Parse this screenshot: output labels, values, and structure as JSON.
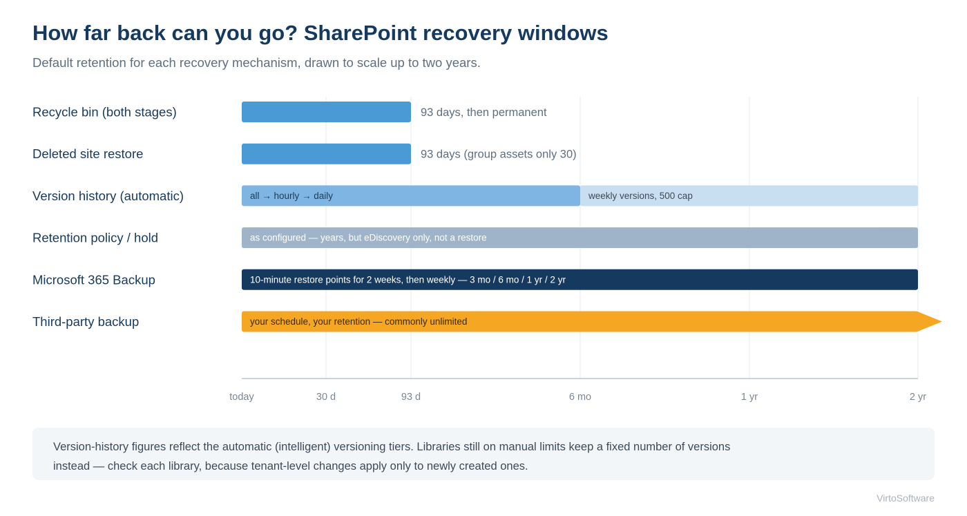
{
  "header": {
    "title": "How far back can you go? SharePoint recovery windows",
    "subtitle": "Default retention for each recovery mechanism, drawn to scale up to two years."
  },
  "chart_data": {
    "type": "bar",
    "orientation": "horizontal",
    "x_unit": "days",
    "xlim": [
      0,
      730
    ],
    "grid": true,
    "ticks": [
      {
        "label": "today",
        "value": 0
      },
      {
        "label": "30 d",
        "value": 30
      },
      {
        "label": "93 d",
        "value": 93
      },
      {
        "label": "6 mo",
        "value": 183
      },
      {
        "label": "1 yr",
        "value": 365
      },
      {
        "label": "2 yr",
        "value": 730
      }
    ],
    "rows": [
      {
        "label": "Recycle bin (both stages)",
        "segments": [
          {
            "start": 0,
            "end": 93,
            "color": "#4a9ad6",
            "text": ""
          }
        ],
        "annotation": "93 days, then permanent"
      },
      {
        "label": "Deleted site restore",
        "segments": [
          {
            "start": 0,
            "end": 93,
            "color": "#4a9ad6",
            "text": ""
          }
        ],
        "annotation": "93 days (group assets only 30)"
      },
      {
        "label": "Version history (automatic)",
        "segments": [
          {
            "start": 0,
            "end": 183,
            "color": "#7fb5e3",
            "text": "all → hourly → daily",
            "text_color": "#1f3a55"
          },
          {
            "start": 183,
            "end": 730,
            "color": "#c8dff2",
            "text": "weekly versions, 500 cap",
            "text_color": "#3d4a57"
          }
        ],
        "annotation": ""
      },
      {
        "label": "Retention policy / hold",
        "segments": [
          {
            "start": 0,
            "end": 730,
            "color": "#9fb4c8",
            "text": "as configured — years, but eDiscovery only, not a restore",
            "text_color": "#ffffff"
          }
        ],
        "annotation": ""
      },
      {
        "label": "Microsoft 365 Backup",
        "segments": [
          {
            "start": 0,
            "end": 730,
            "color": "#163a5f",
            "text": "10-minute restore points for 2 weeks, then weekly — 3 mo / 6 mo / 1 yr / 2 yr",
            "text_color": "#ffffff"
          }
        ],
        "annotation": ""
      },
      {
        "label": "Third-party backup",
        "segments": [
          {
            "start": 0,
            "end": 730,
            "color": "#f5a623",
            "text": "your schedule, your retention — commonly unlimited",
            "text_color": "#3a2a0a",
            "open_ended": true
          }
        ],
        "annotation": ""
      }
    ]
  },
  "note": {
    "line1": "Version-history figures reflect the automatic (intelligent) versioning tiers. Libraries still on manual limits keep a fixed number of versions",
    "line2": "instead — check each library, because tenant-level changes apply only to newly created ones."
  },
  "brand": "VirtoSoftware"
}
